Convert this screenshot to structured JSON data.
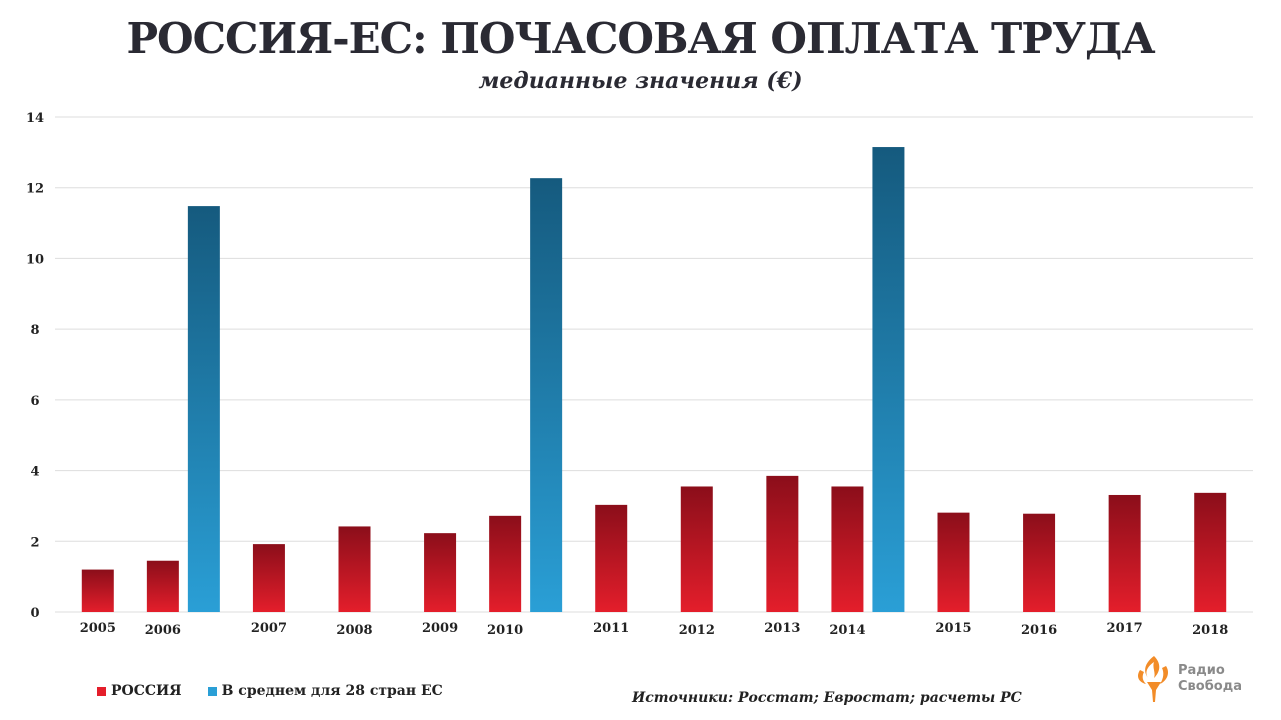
{
  "title": "РОССИЯ-ЕС: ПОЧАСОВАЯ ОПЛАТА ТРУДА",
  "subtitle": "медианные значения (€)",
  "source": "Источники: Росстат; Евростат; расчеты РС",
  "logo": {
    "line1": "Радио",
    "line2": "Свобода",
    "icon": "torch-flame-icon"
  },
  "colors": {
    "russia_top": "#8b0e1a",
    "russia_bottom": "#e41e2b",
    "eu_top": "#155a7e",
    "eu_bottom": "#2a9fd6",
    "grid": "#dddddd",
    "logo": "#f28c28"
  },
  "chart_data": {
    "type": "bar",
    "categories": [
      "2005",
      "2006",
      "2007",
      "2008",
      "2009",
      "2010",
      "2011",
      "2012",
      "2013",
      "2014",
      "2015",
      "2016",
      "2017",
      "2018"
    ],
    "series": [
      {
        "name": "РОССИЯ",
        "values": [
          1.2,
          1.45,
          1.92,
          2.42,
          2.23,
          2.72,
          3.03,
          3.55,
          3.85,
          3.55,
          2.81,
          2.78,
          3.31,
          3.37
        ]
      },
      {
        "name": "В среднем для 28 стран ЕС",
        "values": [
          null,
          11.48,
          null,
          null,
          null,
          12.27,
          null,
          null,
          null,
          13.15,
          null,
          null,
          null,
          null
        ]
      }
    ],
    "ylim": [
      0,
      14
    ],
    "yticks": [
      0,
      2,
      4,
      6,
      8,
      10,
      12,
      14
    ],
    "grid": true,
    "legend": "bottom-left"
  }
}
